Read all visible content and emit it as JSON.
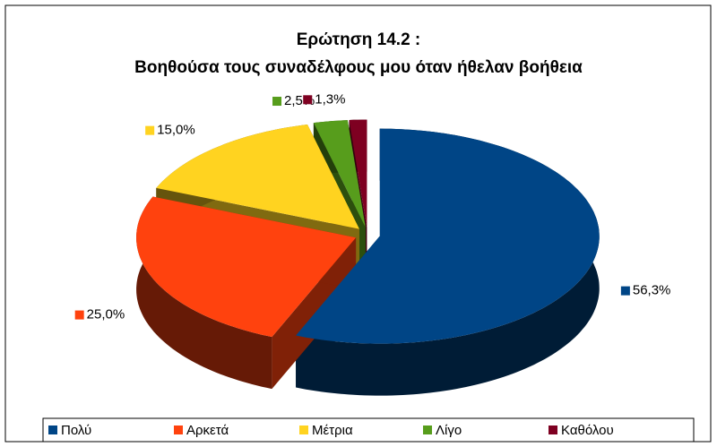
{
  "chart_data": {
    "type": "pie",
    "title": [
      "Ερώτηση 14.2 :",
      "Βοηθούσα τους συναδέλφους μου όταν ήθελαν βοήθεια"
    ],
    "categories": [
      "Πολύ",
      "Αρκετά",
      "Μέτρια",
      "Λίγο",
      "Καθόλου"
    ],
    "values": [
      56.3,
      25.0,
      15.0,
      2.5,
      1.3
    ],
    "value_labels": [
      "56,3%",
      "25,0%",
      "15,0%",
      "2,5%",
      "1,3%"
    ],
    "colors": [
      "#004586",
      "#ff420e",
      "#ffd320",
      "#579d1c",
      "#7e0021"
    ],
    "legend": "bottom"
  }
}
